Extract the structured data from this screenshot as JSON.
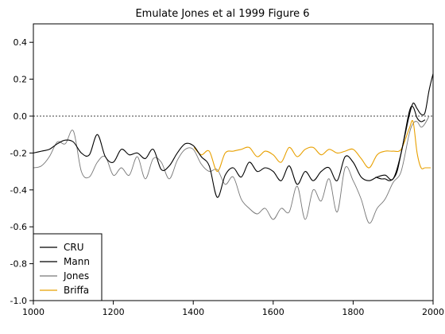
{
  "chart_data": {
    "type": "line",
    "title": "Emulate Jones et al 1999 Figure 6",
    "xlabel": "",
    "ylabel": "",
    "xlim": [
      1000,
      2000
    ],
    "ylim": [
      -1.0,
      0.5
    ],
    "x_ticks": [
      1000,
      1200,
      1400,
      1600,
      1800,
      2000
    ],
    "y_ticks": [
      -1.0,
      -0.8,
      -0.6,
      -0.4,
      -0.2,
      0.0,
      0.2,
      0.4
    ],
    "y_tick_labels": [
      "-1.0",
      "-0.8",
      "-0.6",
      "-0.4",
      "-0.2",
      "0.0",
      "0.2",
      "0.4"
    ],
    "zero_line": {
      "y": 0.0,
      "style": "dashed"
    },
    "grid": false,
    "legend_placement": "bottom-left",
    "series": [
      {
        "name": "CRU",
        "color": "#000000",
        "x": [
          1856,
          1870,
          1880,
          1890,
          1900,
          1910,
          1920,
          1930,
          1940,
          1950,
          1960,
          1970,
          1980,
          1990,
          2000
        ],
        "values": [
          -0.33,
          -0.34,
          -0.34,
          -0.35,
          -0.34,
          -0.3,
          -0.2,
          -0.1,
          0.0,
          0.07,
          0.04,
          0.01,
          0.02,
          0.14,
          0.23
        ]
      },
      {
        "name": "Mann",
        "color": "#000000",
        "x": [
          1000,
          1020,
          1040,
          1060,
          1080,
          1100,
          1120,
          1140,
          1160,
          1180,
          1200,
          1220,
          1240,
          1260,
          1280,
          1300,
          1320,
          1340,
          1360,
          1380,
          1400,
          1420,
          1440,
          1460,
          1480,
          1500,
          1520,
          1540,
          1560,
          1580,
          1600,
          1620,
          1640,
          1660,
          1680,
          1700,
          1720,
          1740,
          1760,
          1780,
          1800,
          1820,
          1840,
          1860,
          1880,
          1900,
          1920,
          1940,
          1950,
          1960,
          1970,
          1980
        ],
        "values": [
          -0.2,
          -0.19,
          -0.18,
          -0.15,
          -0.13,
          -0.14,
          -0.2,
          -0.21,
          -0.1,
          -0.22,
          -0.25,
          -0.18,
          -0.21,
          -0.2,
          -0.23,
          -0.18,
          -0.29,
          -0.27,
          -0.2,
          -0.15,
          -0.16,
          -0.22,
          -0.27,
          -0.44,
          -0.32,
          -0.28,
          -0.33,
          -0.25,
          -0.3,
          -0.28,
          -0.3,
          -0.35,
          -0.27,
          -0.37,
          -0.3,
          -0.35,
          -0.3,
          -0.28,
          -0.35,
          -0.22,
          -0.25,
          -0.33,
          -0.35,
          -0.33,
          -0.32,
          -0.34,
          -0.2,
          0.02,
          0.05,
          -0.01,
          -0.03,
          -0.02
        ]
      },
      {
        "name": "Jones",
        "color": "#777777",
        "x": [
          1000,
          1020,
          1040,
          1060,
          1080,
          1100,
          1120,
          1140,
          1160,
          1180,
          1200,
          1220,
          1240,
          1260,
          1280,
          1300,
          1320,
          1340,
          1360,
          1380,
          1400,
          1420,
          1440,
          1460,
          1480,
          1500,
          1520,
          1540,
          1560,
          1580,
          1600,
          1620,
          1640,
          1660,
          1680,
          1700,
          1720,
          1740,
          1760,
          1780,
          1800,
          1820,
          1840,
          1860,
          1880,
          1900,
          1920,
          1940,
          1950,
          1960,
          1970,
          1980,
          1990
        ],
        "values": [
          -0.28,
          -0.27,
          -0.22,
          -0.14,
          -0.15,
          -0.08,
          -0.3,
          -0.33,
          -0.25,
          -0.22,
          -0.32,
          -0.28,
          -0.32,
          -0.22,
          -0.34,
          -0.23,
          -0.25,
          -0.34,
          -0.24,
          -0.18,
          -0.18,
          -0.26,
          -0.3,
          -0.29,
          -0.37,
          -0.33,
          -0.45,
          -0.5,
          -0.53,
          -0.5,
          -0.56,
          -0.5,
          -0.52,
          -0.38,
          -0.56,
          -0.4,
          -0.46,
          -0.34,
          -0.52,
          -0.28,
          -0.35,
          -0.45,
          -0.58,
          -0.5,
          -0.45,
          -0.36,
          -0.3,
          -0.1,
          -0.04,
          -0.03,
          -0.06,
          -0.04,
          0.0
        ]
      },
      {
        "name": "Briffa",
        "color": "#e8a000",
        "x": [
          1402,
          1420,
          1440,
          1460,
          1480,
          1500,
          1520,
          1540,
          1560,
          1580,
          1600,
          1620,
          1640,
          1660,
          1680,
          1700,
          1720,
          1740,
          1760,
          1780,
          1800,
          1820,
          1840,
          1860,
          1880,
          1900,
          1920,
          1940,
          1950,
          1960,
          1970,
          1980,
          1994
        ],
        "values": [
          -0.17,
          -0.21,
          -0.19,
          -0.3,
          -0.2,
          -0.19,
          -0.18,
          -0.17,
          -0.22,
          -0.19,
          -0.21,
          -0.25,
          -0.17,
          -0.22,
          -0.18,
          -0.17,
          -0.21,
          -0.18,
          -0.2,
          -0.19,
          -0.18,
          -0.23,
          -0.28,
          -0.21,
          -0.19,
          -0.19,
          -0.18,
          -0.07,
          -0.03,
          -0.2,
          -0.28,
          -0.28,
          -0.28
        ]
      }
    ]
  }
}
